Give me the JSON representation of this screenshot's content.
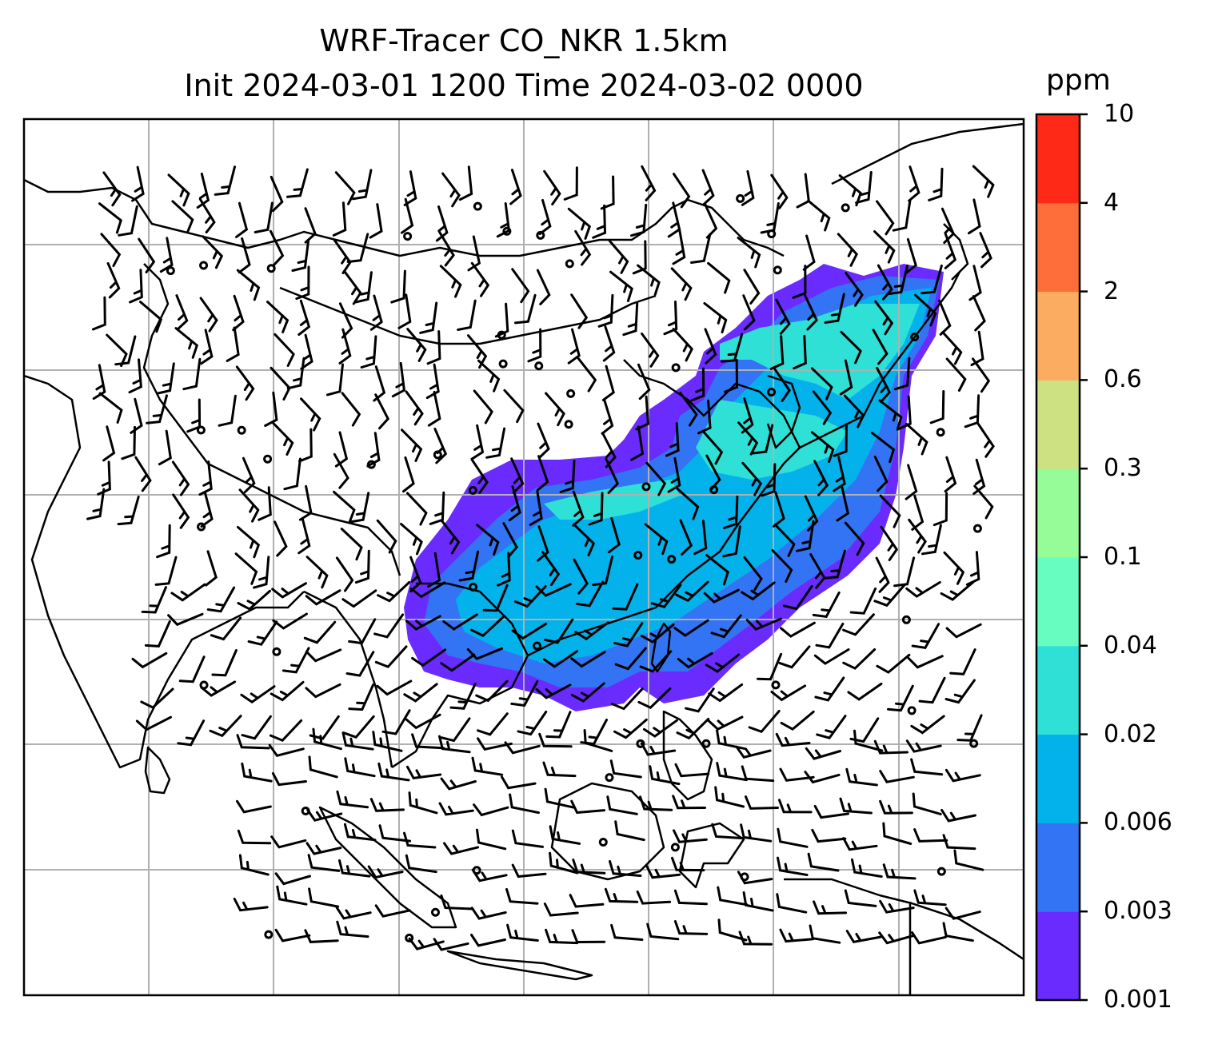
{
  "title": {
    "line1": "WRF-Tracer CO_NKR 1.5km",
    "line2": "Init 2024-03-01 1200 Time 2024-03-02 0000"
  },
  "colorbar": {
    "unit": "ppm",
    "levels": [
      "0.001",
      "0.003",
      "0.006",
      "0.02",
      "0.04",
      "0.1",
      "0.3",
      "0.6",
      "2",
      "4",
      "10"
    ],
    "colors": [
      "#6a2bff",
      "#3374f4",
      "#03b2ea",
      "#2fe0d6",
      "#67fcc0",
      "#96fc98",
      "#cde182",
      "#fcac61",
      "#fd6e3b",
      "#fe2a17"
    ]
  },
  "map": {
    "gridlines": true,
    "grid_color": "#b0b0b0",
    "coastline_color": "#000000",
    "barb_color": "#000000",
    "features": [
      "coastlines",
      "country-borders",
      "wind-barbs",
      "tracer-concentration"
    ]
  }
}
